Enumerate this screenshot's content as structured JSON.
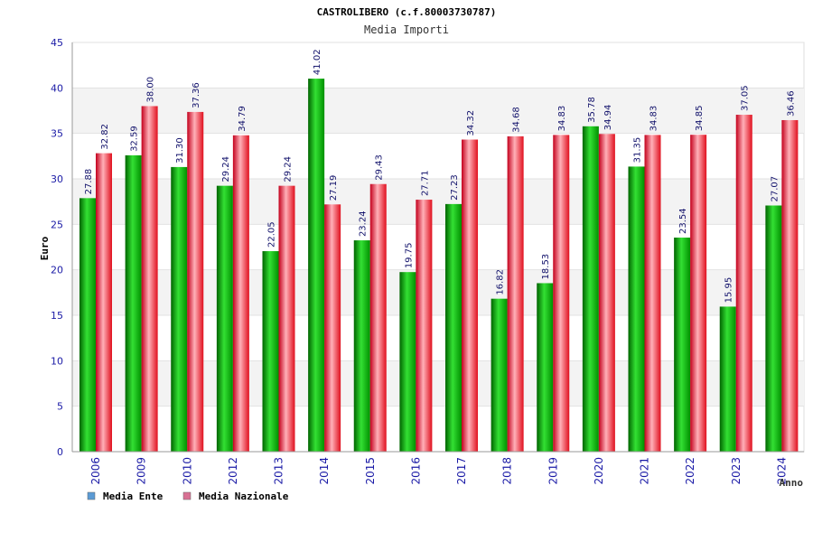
{
  "chart_data": {
    "type": "bar",
    "title": "CASTROLIBERO (c.f.80003730787)",
    "subtitle": "Media Importi",
    "ylabel": "Euro",
    "xlabel": "Anno",
    "ylim": [
      0,
      45
    ],
    "yticks": [
      0,
      5,
      10,
      15,
      20,
      25,
      30,
      35,
      40,
      45
    ],
    "grid": true,
    "legend_position": "bottom-left",
    "categories": [
      "2006",
      "2009",
      "2010",
      "2012",
      "2013",
      "2014",
      "2015",
      "2016",
      "2017",
      "2018",
      "2019",
      "2020",
      "2021",
      "2022",
      "2023",
      "2024"
    ],
    "series": [
      {
        "name": "Media Ente",
        "legend_color": "#5b9bd5",
        "bar_color": "#00b000",
        "values": [
          27.88,
          32.59,
          31.3,
          29.24,
          22.05,
          41.02,
          23.24,
          19.75,
          27.23,
          16.82,
          18.53,
          35.78,
          31.35,
          23.54,
          15.95,
          27.07
        ],
        "labels": [
          "27.88",
          "32.59",
          "31.30",
          "29.24",
          "22.05",
          "41.02",
          "23.24",
          "19.75",
          "27.23",
          "16.82",
          "18.53",
          "35.78",
          "31.35",
          "23.54",
          "15.95",
          "27.07"
        ]
      },
      {
        "name": "Media Nazionale",
        "legend_color": "#d87093",
        "bar_color": "#e8202a",
        "values": [
          32.82,
          38.0,
          37.36,
          34.79,
          29.24,
          27.19,
          29.43,
          27.71,
          34.32,
          34.68,
          34.83,
          34.94,
          34.83,
          34.85,
          37.05,
          36.46
        ],
        "labels": [
          "32.82",
          "38.00",
          "37.36",
          "34.79",
          "29.24",
          "27.19",
          "29.43",
          "27.71",
          "34.32",
          "34.68",
          "34.83",
          "34.94",
          "34.83",
          "34.85",
          "37.05",
          "36.46"
        ]
      }
    ]
  }
}
